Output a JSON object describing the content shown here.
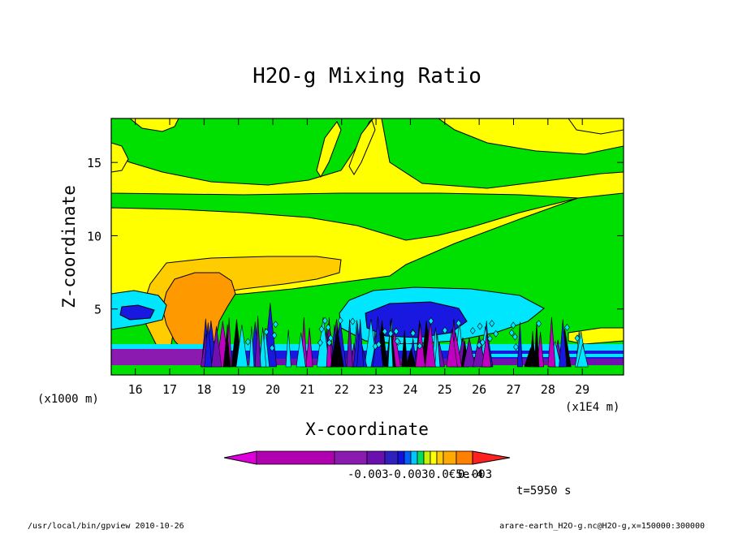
{
  "chart_data": {
    "type": "contour",
    "title": "H2O-g Mixing Ratio",
    "xlabel": "X-coordinate",
    "ylabel": "Z-coordinate",
    "x_unit_left": "(x1000 m)",
    "x_unit_right": "(x1E4 m)",
    "x_ticks": [
      "16",
      "17",
      "18",
      "19",
      "20",
      "21",
      "22",
      "23",
      "24",
      "25",
      "26",
      "27",
      "28",
      "29"
    ],
    "y_ticks": [
      "5",
      "10",
      "15"
    ],
    "xlim": [
      15.3,
      30.2
    ],
    "ylim": [
      0.5,
      18
    ],
    "colorbar": {
      "labels": [
        "-0.003",
        "-0.0030.0€5e-4",
        "0.003"
      ],
      "colors": [
        "#dd00dd",
        "#b000b0",
        "#8a1ab0",
        "#6a10b0",
        "#3020c0",
        "#1010e0",
        "#0060ff",
        "#00c8ff",
        "#00e060",
        "#c8f000",
        "#ffff00",
        "#ffcc00",
        "#ffaa00",
        "#ff8000",
        "#ff2020"
      ]
    },
    "time_label": "t=5950 s",
    "fills": {
      "background": "#00e000",
      "yellow": "#ffff00",
      "light_orange": "#ffcc00",
      "orange": "#ff9900",
      "cyan": "#00e6ff",
      "blue": "#1818e0",
      "purple": "#7010b0",
      "magenta": "#c000c0"
    }
  },
  "footer": {
    "left": "/usr/local/bin/gpview  2010-10-26",
    "right": "arare-earth_H2O-g.nc@H2O-g,x=150000:300000"
  }
}
